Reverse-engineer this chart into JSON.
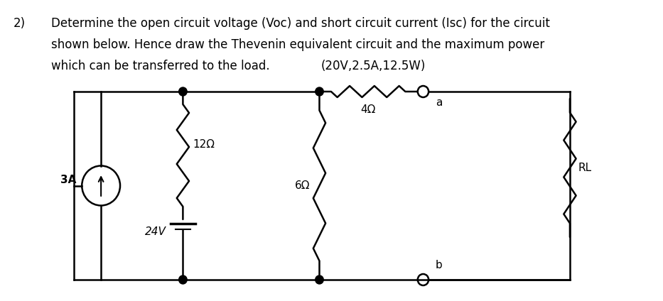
{
  "title_number": "2)",
  "line1": "Determine the open circuit voltage (Voc) and short circuit current (Isc) for the circuit",
  "line2": "shown below. Hence draw the Thevenin equivalent circuit and the maximum power",
  "line3": "which can be transferred to the load.",
  "answer": "(20V,2.5A,12.5W)",
  "current_source_label": "3A",
  "r1_label": "12Ω",
  "v1_label": "24V",
  "r2_label": "6Ω",
  "r3_label": "4Ω",
  "rl_label": "RL",
  "node_a_label": "a",
  "node_b_label": "b",
  "bg_color": "#ffffff",
  "line_color": "#000000",
  "font_size_text": 12,
  "font_size_label": 11
}
